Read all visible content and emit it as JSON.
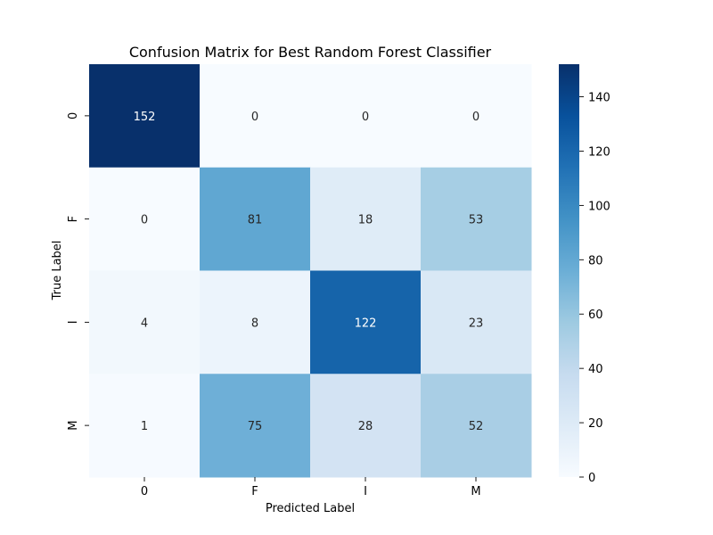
{
  "chart_data": {
    "type": "heatmap",
    "title": "Confusion Matrix for Best Random Forest Classifier",
    "xlabel": "Predicted Label",
    "ylabel": "True Label",
    "x_categories": [
      "0",
      "F",
      "I",
      "M"
    ],
    "y_categories": [
      "0",
      "F",
      "I",
      "M"
    ],
    "values": [
      [
        152,
        0,
        0,
        0
      ],
      [
        0,
        81,
        18,
        53
      ],
      [
        4,
        8,
        122,
        23
      ],
      [
        1,
        75,
        28,
        52
      ]
    ],
    "colormap": "Blues",
    "vmin": 0,
    "vmax": 152,
    "colorbar_ticks": [
      0,
      20,
      40,
      60,
      80,
      100,
      120,
      140
    ],
    "colors": {
      "low": "#f7fbff",
      "high": "#08306b",
      "annotation_dark_text": "#262626",
      "annotation_light_text": "#ffffff"
    }
  }
}
